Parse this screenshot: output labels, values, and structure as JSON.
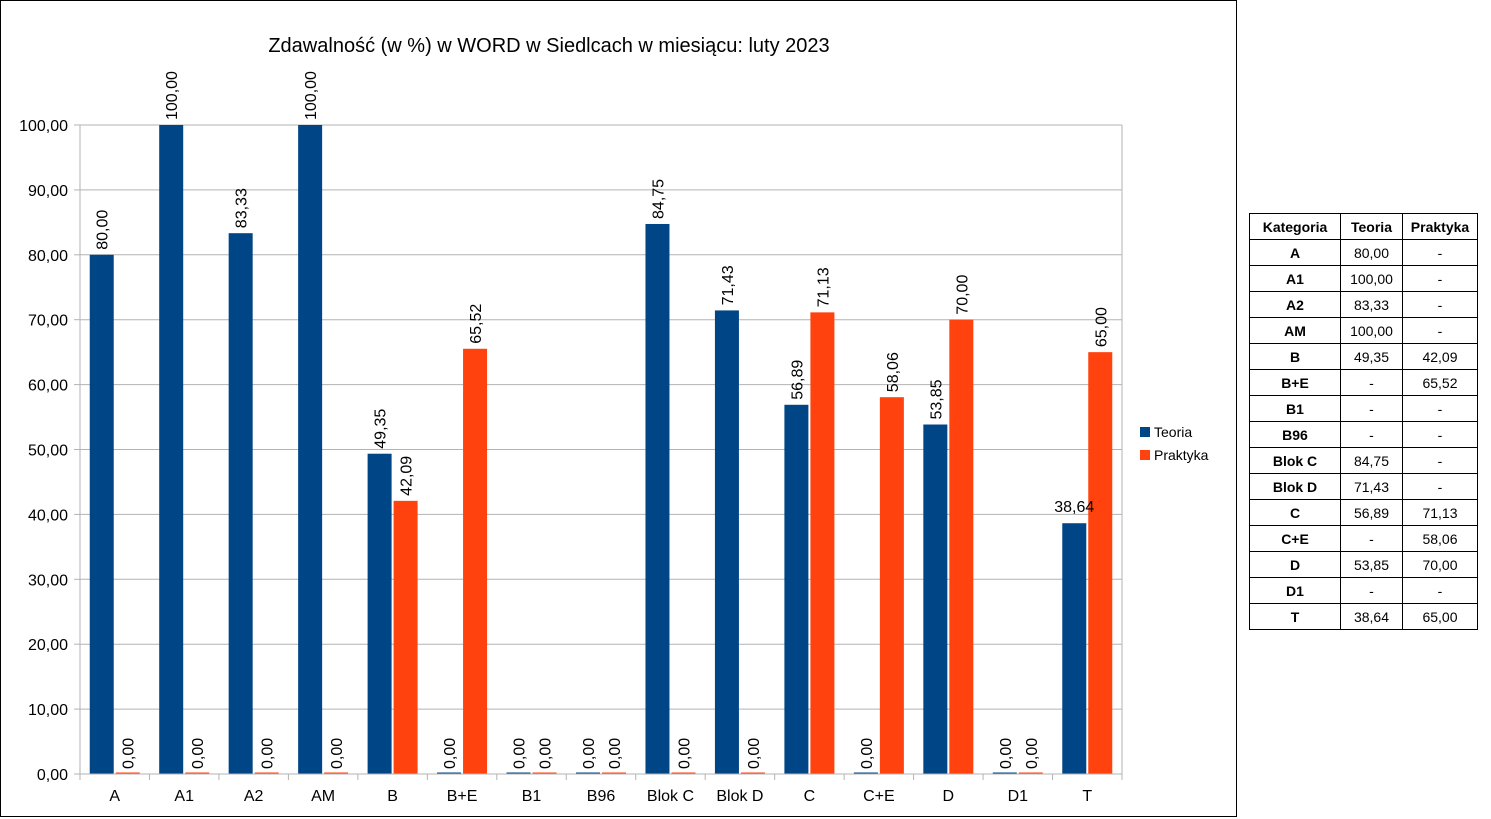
{
  "chart_data": {
    "type": "bar",
    "title": "Zdawalność (w %) w WORD w Siedlcach w miesiącu: luty 2023",
    "categories": [
      "A",
      "A1",
      "A2",
      "AM",
      "B",
      "B+E",
      "B1",
      "B96",
      "Blok C",
      "Blok D",
      "C",
      "C+E",
      "D",
      "D1",
      "T"
    ],
    "series": [
      {
        "name": "Teoria",
        "color": "#004586",
        "values": [
          80.0,
          100.0,
          83.33,
          100.0,
          49.35,
          0.0,
          0.0,
          0.0,
          84.75,
          71.43,
          56.89,
          0.0,
          53.85,
          0.0,
          38.64
        ],
        "labels": [
          "80,00",
          "100,00",
          "83,33",
          "100,00",
          "49,35",
          "0,00",
          "0,00",
          "0,00",
          "84,75",
          "71,43",
          "56,89",
          "0,00",
          "53,85",
          "0,00",
          "38,64"
        ]
      },
      {
        "name": "Praktyka",
        "color": "#ff420e",
        "values": [
          0.0,
          0.0,
          0.0,
          0.0,
          42.09,
          65.52,
          0.0,
          0.0,
          0.0,
          0.0,
          71.13,
          58.06,
          70.0,
          0.0,
          65.0
        ],
        "labels": [
          "0,00",
          "0,00",
          "0,00",
          "0,00",
          "42,09",
          "65,52",
          "0,00",
          "0,00",
          "0,00",
          "0,00",
          "71,13",
          "58,06",
          "70,00",
          "0,00",
          "65,00"
        ]
      }
    ],
    "ylim": [
      0,
      100
    ],
    "yticks": [
      "0,00",
      "10,00",
      "20,00",
      "30,00",
      "40,00",
      "50,00",
      "60,00",
      "70,00",
      "80,00",
      "90,00",
      "100,00"
    ],
    "grid": true,
    "legend_position": "right"
  },
  "table": {
    "headers": [
      "Kategoria",
      "Teoria",
      "Praktyka"
    ],
    "rows": [
      [
        "A",
        "80,00",
        "-"
      ],
      [
        "A1",
        "100,00",
        "-"
      ],
      [
        "A2",
        "83,33",
        "-"
      ],
      [
        "AM",
        "100,00",
        "-"
      ],
      [
        "B",
        "49,35",
        "42,09"
      ],
      [
        "B+E",
        "-",
        "65,52"
      ],
      [
        "B1",
        "-",
        "-"
      ],
      [
        "B96",
        "-",
        "-"
      ],
      [
        "Blok C",
        "84,75",
        "-"
      ],
      [
        "Blok D",
        "71,43",
        "-"
      ],
      [
        "C",
        "56,89",
        "71,13"
      ],
      [
        "C+E",
        "-",
        "58,06"
      ],
      [
        "D",
        "53,85",
        "70,00"
      ],
      [
        "D1",
        "-",
        "-"
      ],
      [
        "T",
        "38,64",
        "65,00"
      ]
    ]
  }
}
